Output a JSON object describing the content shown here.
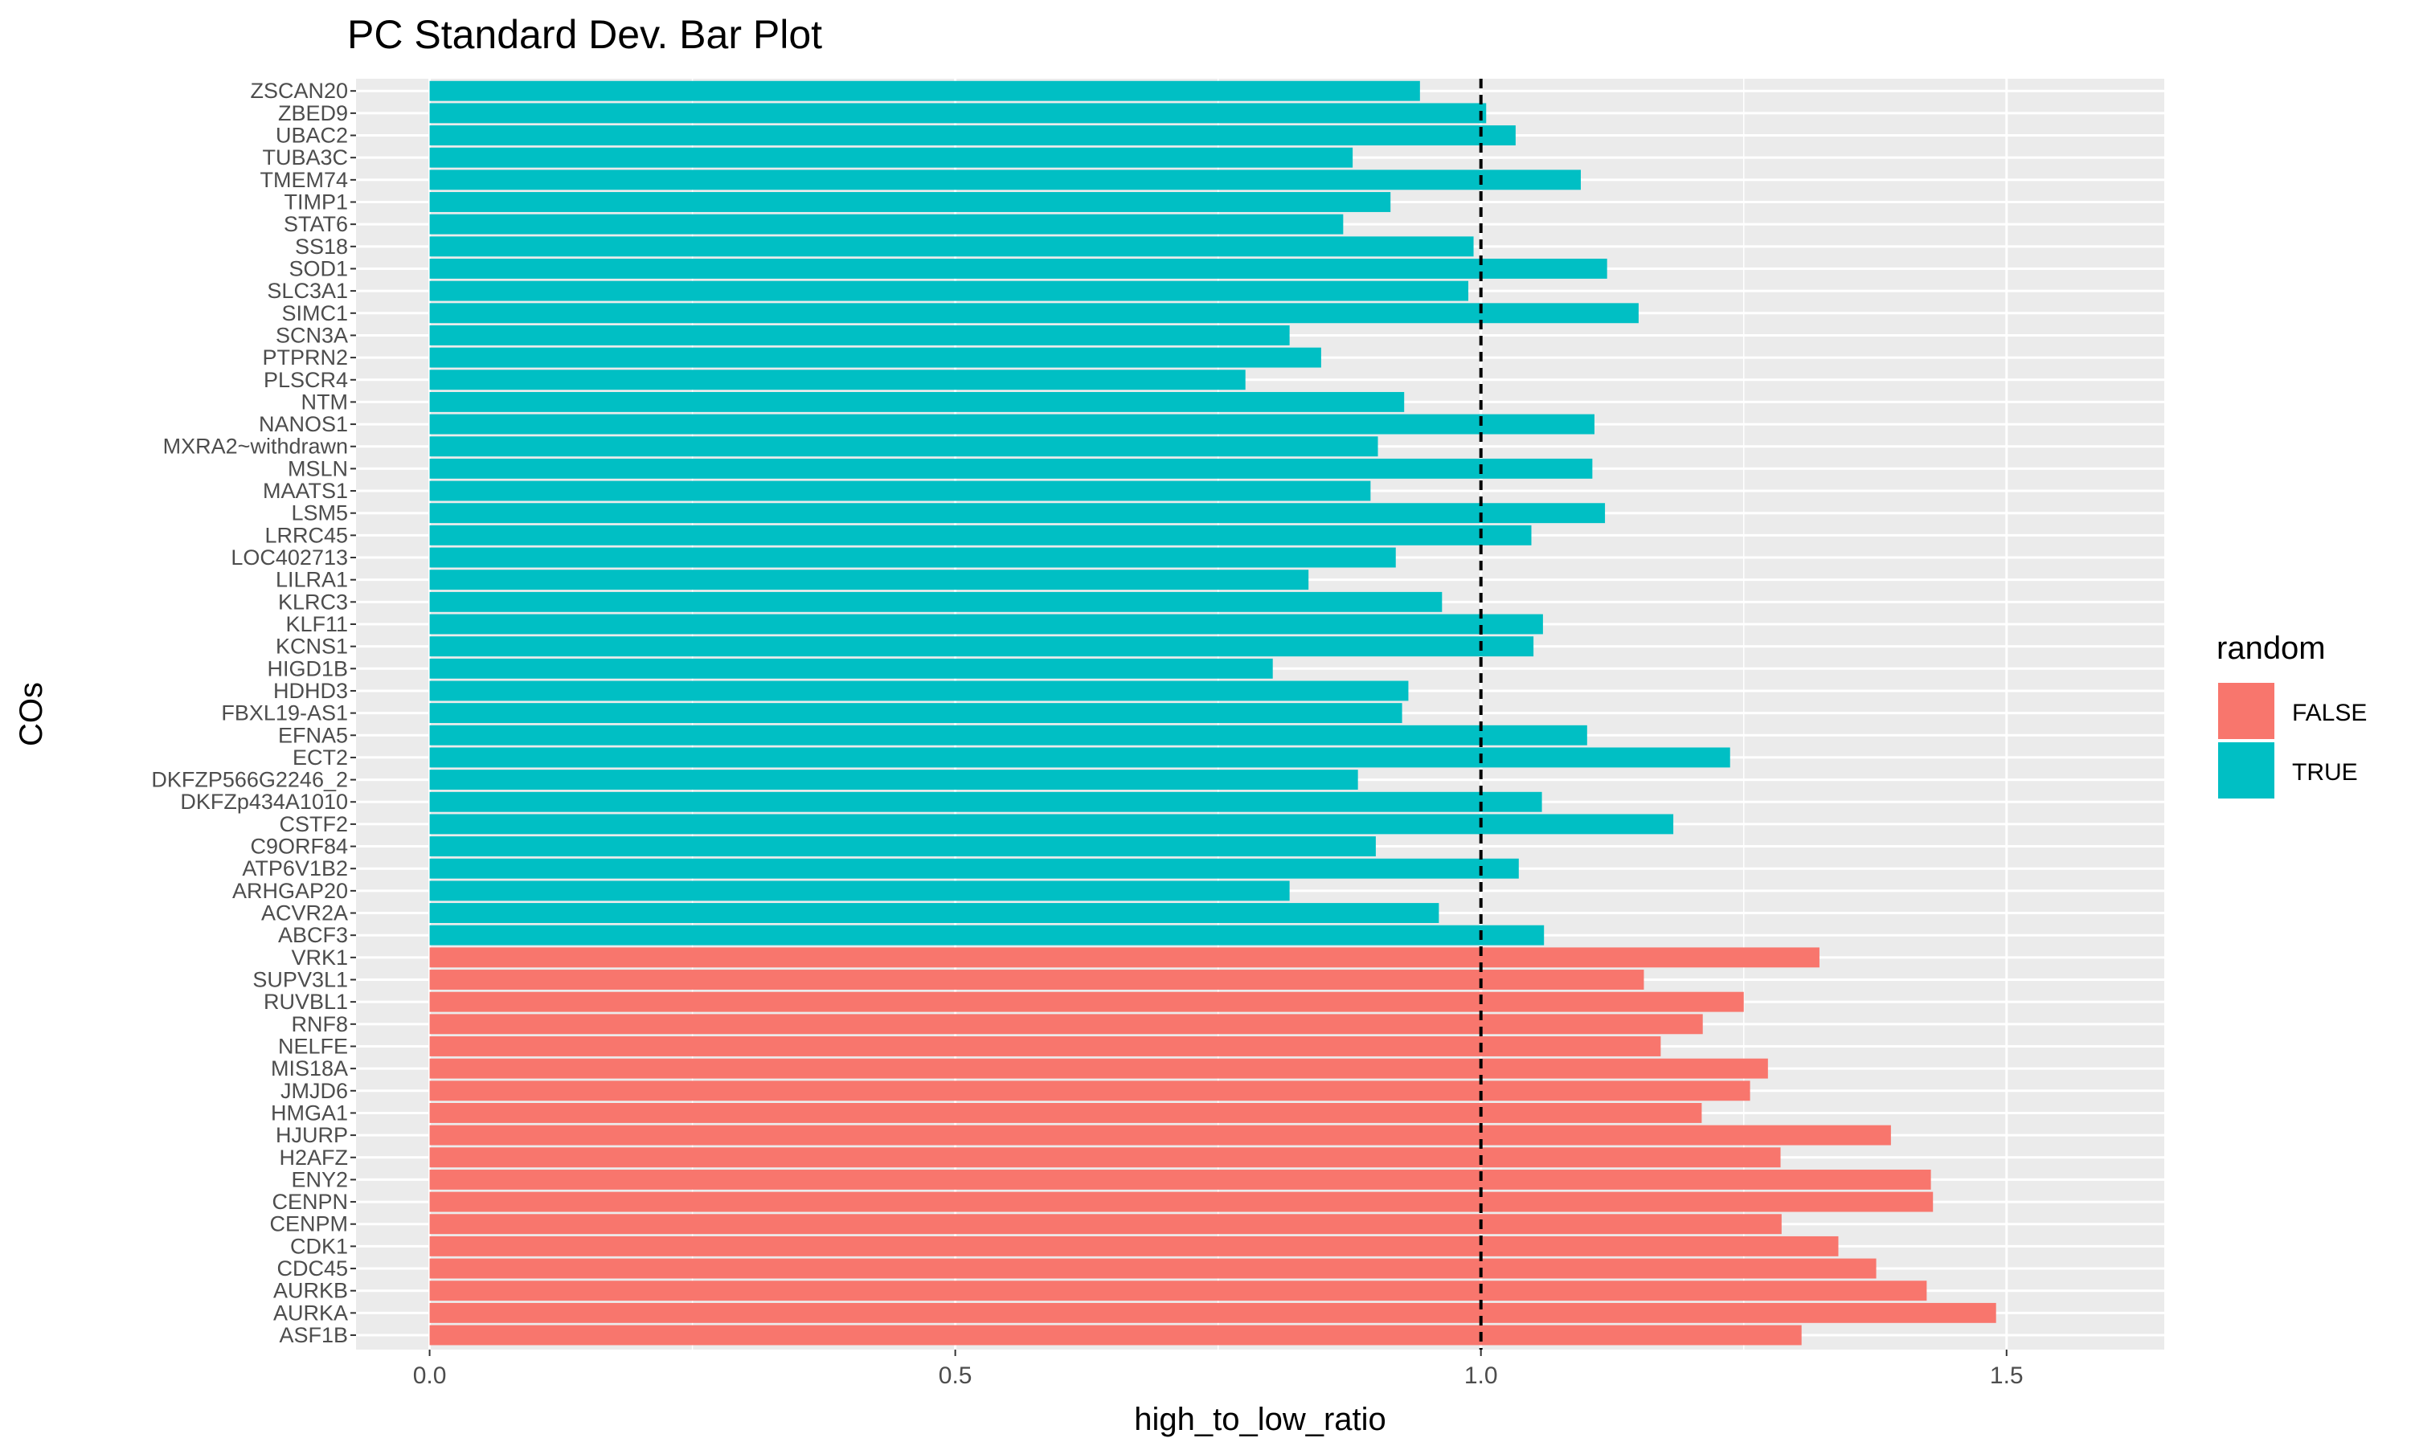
{
  "chart_data": {
    "type": "bar",
    "orientation": "horizontal",
    "title": "PC Standard Dev. Bar Plot",
    "xlabel": "high_to_low_ratio",
    "ylabel": "COs",
    "xlim": [
      -0.07,
      1.65
    ],
    "xticks": [
      0.0,
      0.5,
      1.0,
      1.5
    ],
    "xtick_labels": [
      "0.0",
      "0.5",
      "1.0",
      "1.5"
    ],
    "reference_line": {
      "x": 1.0,
      "style": "dashed",
      "color": "#000000"
    },
    "grid": true,
    "legend": {
      "title": "random",
      "position": "right",
      "items": [
        {
          "label": "FALSE",
          "color": "#F8766D"
        },
        {
          "label": "TRUE",
          "color": "#00BFC4"
        }
      ]
    },
    "categories": [
      "ZSCAN20",
      "ZBED9",
      "UBAC2",
      "TUBA3C",
      "TMEM74",
      "TIMP1",
      "STAT6",
      "SS18",
      "SOD1",
      "SLC3A1",
      "SIMC1",
      "SCN3A",
      "PTPRN2",
      "PLSCR4",
      "NTM",
      "NANOS1",
      "MXRA2~withdrawn",
      "MSLN",
      "MAATS1",
      "LSM5",
      "LRRC45",
      "LOC402713",
      "LILRA1",
      "KLRC3",
      "KLF11",
      "KCNS1",
      "HIGD1B",
      "HDHD3",
      "FBXL19-AS1",
      "EFNA5",
      "ECT2",
      "DKFZP566G2246_2",
      "DKFZp434A1010",
      "CSTF2",
      "C9ORF84",
      "ATP6V1B2",
      "ARHGAP20",
      "ACVR2A",
      "ABCF3",
      "VRK1",
      "SUPV3L1",
      "RUVBL1",
      "RNF8",
      "NELFE",
      "MIS18A",
      "JMJD6",
      "HMGA1",
      "HJURP",
      "H2AFZ",
      "ENY2",
      "CENPN",
      "CENPM",
      "CDK1",
      "CDC45",
      "AURKB",
      "AURKA",
      "ASF1B"
    ],
    "values": [
      0.942,
      1.005,
      1.033,
      0.878,
      1.095,
      0.914,
      0.869,
      0.993,
      1.12,
      0.988,
      1.15,
      0.818,
      0.848,
      0.776,
      0.927,
      1.108,
      0.902,
      1.106,
      0.895,
      1.118,
      1.048,
      0.919,
      0.836,
      0.963,
      1.059,
      1.05,
      0.802,
      0.931,
      0.925,
      1.101,
      1.237,
      0.883,
      1.058,
      1.183,
      0.9,
      1.036,
      0.818,
      0.96,
      1.06,
      1.322,
      1.155,
      1.25,
      1.211,
      1.171,
      1.273,
      1.256,
      1.21,
      1.39,
      1.285,
      1.428,
      1.43,
      1.286,
      1.34,
      1.376,
      1.424,
      1.49,
      1.305
    ],
    "random": [
      "TRUE",
      "TRUE",
      "TRUE",
      "TRUE",
      "TRUE",
      "TRUE",
      "TRUE",
      "TRUE",
      "TRUE",
      "TRUE",
      "TRUE",
      "TRUE",
      "TRUE",
      "TRUE",
      "TRUE",
      "TRUE",
      "TRUE",
      "TRUE",
      "TRUE",
      "TRUE",
      "TRUE",
      "TRUE",
      "TRUE",
      "TRUE",
      "TRUE",
      "TRUE",
      "TRUE",
      "TRUE",
      "TRUE",
      "TRUE",
      "TRUE",
      "TRUE",
      "TRUE",
      "TRUE",
      "TRUE",
      "TRUE",
      "TRUE",
      "TRUE",
      "TRUE",
      "FALSE",
      "FALSE",
      "FALSE",
      "FALSE",
      "FALSE",
      "FALSE",
      "FALSE",
      "FALSE",
      "FALSE",
      "FALSE",
      "FALSE",
      "FALSE",
      "FALSE",
      "FALSE",
      "FALSE",
      "FALSE",
      "FALSE",
      "FALSE"
    ],
    "colors": {
      "TRUE": "#00BFC4",
      "FALSE": "#F8766D",
      "panel": "#EBEBEB",
      "grid": "#FFFFFF"
    }
  }
}
